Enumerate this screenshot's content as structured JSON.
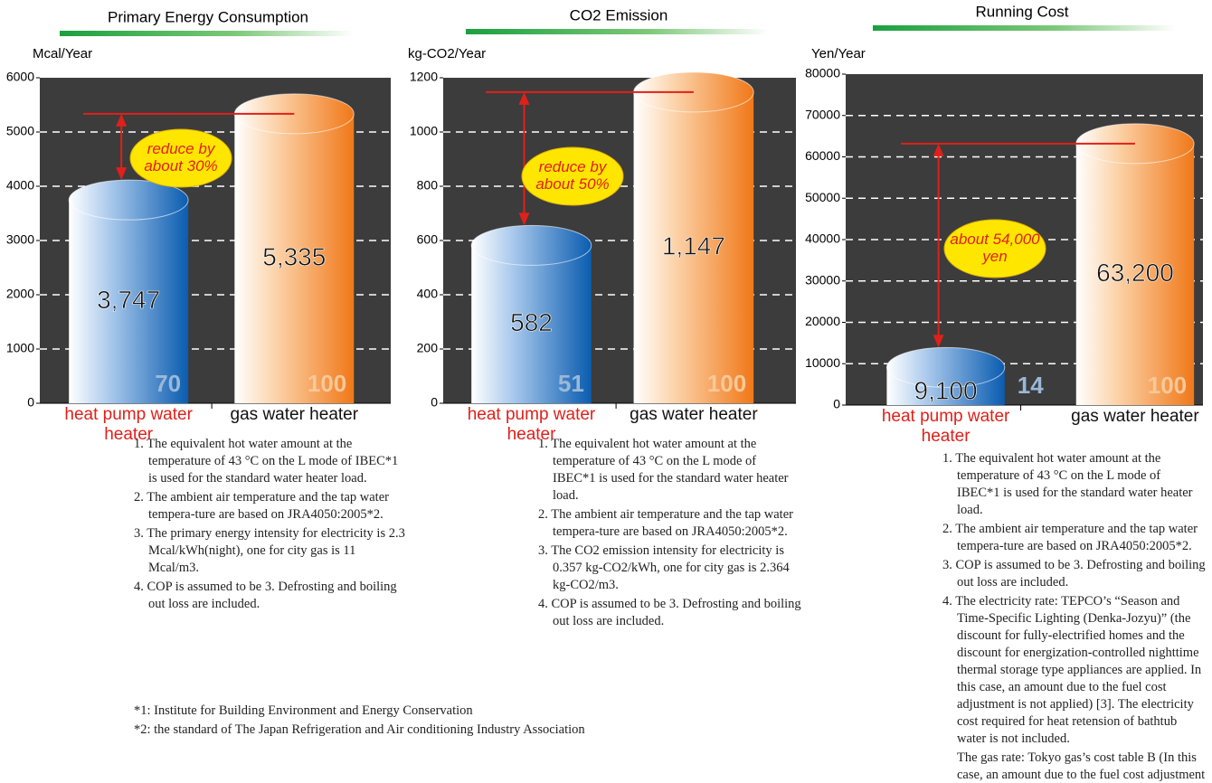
{
  "chart_data": [
    {
      "type": "cylinder",
      "title": "Primary Energy Consumption",
      "y_label": "Mcal/Year",
      "categories": [
        "heat pump water heater",
        "gas water heater"
      ],
      "values": [
        3747,
        5335
      ],
      "value_labels": [
        "3,747",
        "5,335"
      ],
      "index": [
        70,
        100
      ],
      "colors": [
        "#0a5cb0",
        "#f07818"
      ],
      "label_colors": [
        "#e0201a",
        "#111111"
      ],
      "annotation": "reduce by about 30%",
      "ylim": [
        0,
        6000
      ],
      "yticks": [
        0,
        1000,
        2000,
        3000,
        4000,
        5000,
        6000
      ],
      "grid": true,
      "notes": [
        "1. The equivalent hot water amount at the temperature of 43 °C on the L mode of IBEC*1 is used for the standard water heater load.",
        "2. The ambient air temperature and the tap water tempera-ture are based on JRA4050:2005*2.",
        "3. The primary energy intensity for electricity is 2.3 Mcal/kWh(night), one for city gas is 11 Mcal/m3.",
        "4. COP is assumed to be 3. Defrosting and boiling out loss are included."
      ]
    },
    {
      "type": "cylinder",
      "title": "CO2 Emission",
      "y_label": "kg-CO2/Year",
      "categories": [
        "heat pump water heater",
        "gas water heater"
      ],
      "values": [
        582,
        1147
      ],
      "value_labels": [
        "582",
        "1,147"
      ],
      "index": [
        51,
        100
      ],
      "colors": [
        "#0a5cb0",
        "#f07818"
      ],
      "label_colors": [
        "#e0201a",
        "#111111"
      ],
      "annotation": "reduce by about 50%",
      "ylim": [
        0,
        1200
      ],
      "yticks": [
        0,
        200,
        400,
        600,
        800,
        1000,
        1200
      ],
      "grid": true,
      "notes": [
        "1. The equivalent hot water amount at the temperature of 43 °C on the L mode of IBEC*1 is used for the standard water heater load.",
        "2. The ambient air temperature and the tap water tempera-ture are based on JRA4050:2005*2.",
        "3. The CO2 emission intensity for electricity is 0.357 kg-CO2/kWh, one for city gas is 2.364 kg-CO2/m3.",
        "4. COP is assumed to be 3. Defrosting and boiling out loss are included."
      ]
    },
    {
      "type": "cylinder",
      "title": "Running Cost",
      "y_label": "Yen/Year",
      "categories": [
        "heat pump water heater",
        "gas water heater"
      ],
      "values": [
        9100,
        63200
      ],
      "value_labels": [
        "9,100",
        "63,200"
      ],
      "index": [
        14,
        100
      ],
      "colors": [
        "#0a5cb0",
        "#f07818"
      ],
      "label_colors": [
        "#e0201a",
        "#111111"
      ],
      "annotation": "about 54,000 yen",
      "ylim": [
        0,
        80000
      ],
      "yticks": [
        0,
        10000,
        20000,
        30000,
        40000,
        50000,
        60000,
        70000,
        80000
      ],
      "grid": true,
      "notes": [
        "1. The equivalent hot water amount at the temperature of 43 °C on the L mode of IBEC*1 is used for the standard water heater load.",
        "2. The ambient air temperature and the tap water tempera-ture are based on JRA4050:2005*2.",
        "3. COP is assumed to be 3. Defrosting and boiling out loss are included.",
        "4. The electricity rate: TEPCO’s “Season and Time-Specific Lighting (Denka-Jozyu)” (the discount for fully-electrified homes and the discount for energization-controlled nighttime thermal storage type appliances are applied. In this case, an amount due to the fuel cost adjustment is not applied) [3]. The electricity cost required for heat retension of bathtub water is not included.",
        "The gas rate: Tokyo gas’s cost table B (In this case, an amount due to the fuel cost adjustment is not applied.)"
      ]
    }
  ],
  "footnotes": [
    "*1: Institute for Building Environment and Energy Conservation",
    "*2: the standard of The Japan Refrigeration and Air conditioning Industry Association"
  ]
}
